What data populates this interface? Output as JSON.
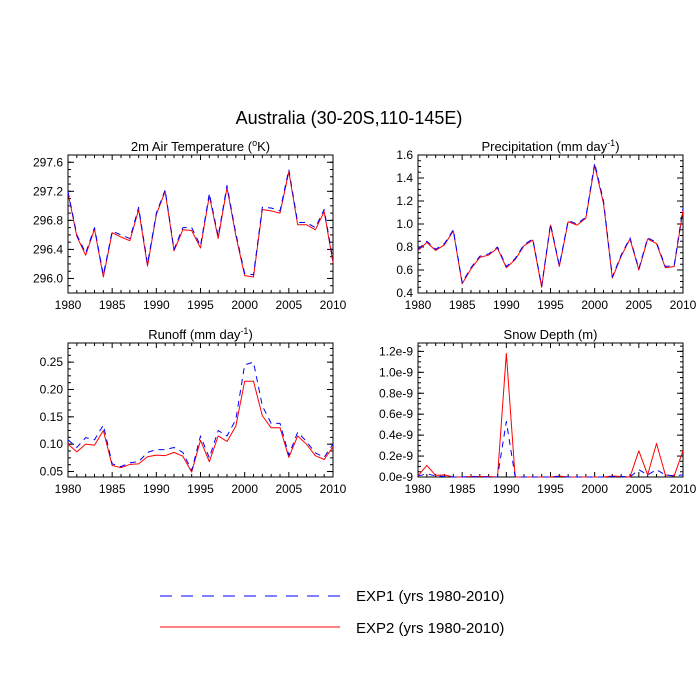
{
  "figure": {
    "title": "Australia (30-20S,110-145E)",
    "series_styles": [
      {
        "name": "EXP1",
        "color": "#0000ff",
        "dash": "6,5"
      },
      {
        "name": "EXP2",
        "color": "#ff0000",
        "dash": ""
      }
    ],
    "legend": [
      {
        "label": "EXP1 (yrs 1980-2010)"
      },
      {
        "label": "EXP2 (yrs 1980-2010)"
      }
    ]
  },
  "chart_data": [
    {
      "type": "line",
      "title": "2m Air Temperature (°K)",
      "title_parts": [
        "2m Air Temperature (",
        "o",
        "K)"
      ],
      "x": [
        1980,
        1981,
        1982,
        1983,
        1984,
        1985,
        1986,
        1987,
        1988,
        1989,
        1990,
        1991,
        1992,
        1993,
        1994,
        1995,
        1996,
        1997,
        1998,
        1999,
        2000,
        2001,
        2002,
        2003,
        2004,
        2005,
        2006,
        2007,
        2008,
        2009,
        2010
      ],
      "xlim": [
        1980,
        2010
      ],
      "xticks": [
        "1980",
        "1985",
        "1990",
        "1995",
        "2000",
        "2005",
        "2010"
      ],
      "ylim": [
        295.8,
        297.7
      ],
      "yticks": [
        "296.0",
        "296.4",
        "296.8",
        "297.2",
        "297.6"
      ],
      "series": [
        {
          "name": "EXP1",
          "values": [
            297.2,
            296.6,
            296.35,
            296.7,
            296.05,
            296.65,
            296.6,
            296.55,
            296.98,
            296.2,
            296.9,
            297.22,
            296.4,
            296.7,
            296.7,
            296.45,
            297.17,
            296.58,
            297.28,
            296.62,
            296.07,
            296.05,
            296.98,
            296.97,
            296.93,
            297.5,
            296.77,
            296.77,
            296.7,
            296.95,
            296.25
          ]
        },
        {
          "name": "EXP2",
          "values": [
            297.18,
            296.58,
            296.32,
            296.68,
            296.02,
            296.63,
            296.57,
            296.52,
            296.95,
            296.17,
            296.88,
            297.2,
            296.38,
            296.67,
            296.66,
            296.42,
            297.14,
            296.55,
            297.25,
            296.59,
            296.04,
            296.02,
            296.95,
            296.93,
            296.9,
            297.47,
            296.74,
            296.74,
            296.67,
            296.92,
            296.22
          ]
        }
      ]
    },
    {
      "type": "line",
      "title": "Precipitation (mm day-1)",
      "title_parts": [
        "Precipitation (mm day",
        "-1",
        ")"
      ],
      "x": [
        1980,
        1981,
        1982,
        1983,
        1984,
        1985,
        1986,
        1987,
        1988,
        1989,
        1990,
        1991,
        1992,
        1993,
        1994,
        1995,
        1996,
        1997,
        1998,
        1999,
        2000,
        2001,
        2002,
        2003,
        2004,
        2005,
        2006,
        2007,
        2008,
        2009,
        2010
      ],
      "xlim": [
        1980,
        2010
      ],
      "xticks": [
        "1980",
        "1985",
        "1990",
        "1995",
        "2000",
        "2005",
        "2010"
      ],
      "ylim": [
        0.4,
        1.6
      ],
      "yticks": [
        "0.4",
        "0.6",
        "0.8",
        "1.0",
        "1.2",
        "1.4",
        "1.6"
      ],
      "series": [
        {
          "name": "EXP1",
          "values": [
            0.78,
            0.85,
            0.78,
            0.83,
            0.95,
            0.49,
            0.62,
            0.72,
            0.74,
            0.8,
            0.63,
            0.7,
            0.82,
            0.87,
            0.46,
            1.0,
            0.64,
            1.03,
            1.0,
            1.06,
            1.53,
            1.2,
            0.54,
            0.73,
            0.88,
            0.61,
            0.88,
            0.84,
            0.63,
            0.64,
            1.14
          ]
        },
        {
          "name": "EXP2",
          "values": [
            0.77,
            0.84,
            0.77,
            0.82,
            0.94,
            0.48,
            0.61,
            0.71,
            0.73,
            0.79,
            0.62,
            0.69,
            0.81,
            0.86,
            0.45,
            0.99,
            0.63,
            1.02,
            0.99,
            1.05,
            1.51,
            1.18,
            0.53,
            0.72,
            0.87,
            0.6,
            0.87,
            0.83,
            0.62,
            0.63,
            1.12
          ]
        }
      ]
    },
    {
      "type": "line",
      "title": "Runoff (mm day-1)",
      "title_parts": [
        "Runoff (mm day",
        "-1",
        ")"
      ],
      "x": [
        1980,
        1981,
        1982,
        1983,
        1984,
        1985,
        1986,
        1987,
        1988,
        1989,
        1990,
        1991,
        1992,
        1993,
        1994,
        1995,
        1996,
        1997,
        1998,
        1999,
        2000,
        2001,
        2002,
        2003,
        2004,
        2005,
        2006,
        2007,
        2008,
        2009,
        2010
      ],
      "xlim": [
        1980,
        2010
      ],
      "xticks": [
        "1980",
        "1985",
        "1990",
        "1995",
        "2000",
        "2005",
        "2010"
      ],
      "ylim": [
        0.04,
        0.285
      ],
      "yticks": [
        "0.05",
        "0.10",
        "0.15",
        "0.20",
        "0.25"
      ],
      "series": [
        {
          "name": "EXP1",
          "values": [
            0.108,
            0.094,
            0.112,
            0.108,
            0.135,
            0.064,
            0.059,
            0.066,
            0.068,
            0.085,
            0.09,
            0.09,
            0.094,
            0.085,
            0.052,
            0.115,
            0.075,
            0.125,
            0.115,
            0.145,
            0.245,
            0.25,
            0.17,
            0.138,
            0.138,
            0.08,
            0.122,
            0.105,
            0.084,
            0.076,
            0.1
          ]
        },
        {
          "name": "EXP2",
          "values": [
            0.1,
            0.086,
            0.1,
            0.098,
            0.125,
            0.061,
            0.057,
            0.063,
            0.064,
            0.077,
            0.08,
            0.079,
            0.085,
            0.078,
            0.049,
            0.107,
            0.068,
            0.115,
            0.105,
            0.133,
            0.215,
            0.215,
            0.152,
            0.13,
            0.13,
            0.076,
            0.115,
            0.1,
            0.079,
            0.072,
            0.095
          ]
        }
      ]
    },
    {
      "type": "line",
      "title": "Snow Depth (m)",
      "title_parts": [
        "Snow Depth (m)"
      ],
      "x": [
        1980,
        1981,
        1982,
        1983,
        1984,
        1985,
        1986,
        1987,
        1988,
        1989,
        1990,
        1991,
        1992,
        1993,
        1994,
        1995,
        1996,
        1997,
        1998,
        1999,
        2000,
        2001,
        2002,
        2003,
        2004,
        2005,
        2006,
        2007,
        2008,
        2009,
        2010
      ],
      "xlim": [
        1980,
        2010
      ],
      "xticks": [
        "1980",
        "1985",
        "1990",
        "1995",
        "2000",
        "2005",
        "2010"
      ],
      "ylim": [
        0,
        1.28e-09
      ],
      "yticks": [
        "0.0e-9",
        "0.2e-9",
        "0.4e-9",
        "0.6e-9",
        "0.8e-9",
        "1.0e-9",
        "1.2e-9"
      ],
      "series": [
        {
          "name": "EXP1",
          "values": [
            1e-11,
            3e-11,
            1e-11,
            5e-12,
            0,
            0,
            5e-12,
            0,
            0,
            0,
            5.3e-10,
            0,
            0,
            0,
            0,
            0,
            5e-12,
            0,
            0,
            0,
            0,
            0,
            5e-12,
            5e-12,
            0,
            7e-11,
            2e-11,
            7e-11,
            2e-11,
            1e-11,
            2e-11
          ]
        },
        {
          "name": "EXP2",
          "values": [
            1e-11,
            1.1e-10,
            1.5e-11,
            2e-11,
            0,
            0,
            5e-12,
            5e-12,
            5e-12,
            0,
            1.18e-09,
            0,
            0,
            0,
            0,
            0,
            1e-11,
            0,
            0,
            0,
            0,
            0,
            1e-11,
            5e-12,
            0,
            2.5e-10,
            2e-11,
            3.2e-10,
            2e-11,
            1e-11,
            2.5e-10
          ]
        }
      ]
    }
  ]
}
